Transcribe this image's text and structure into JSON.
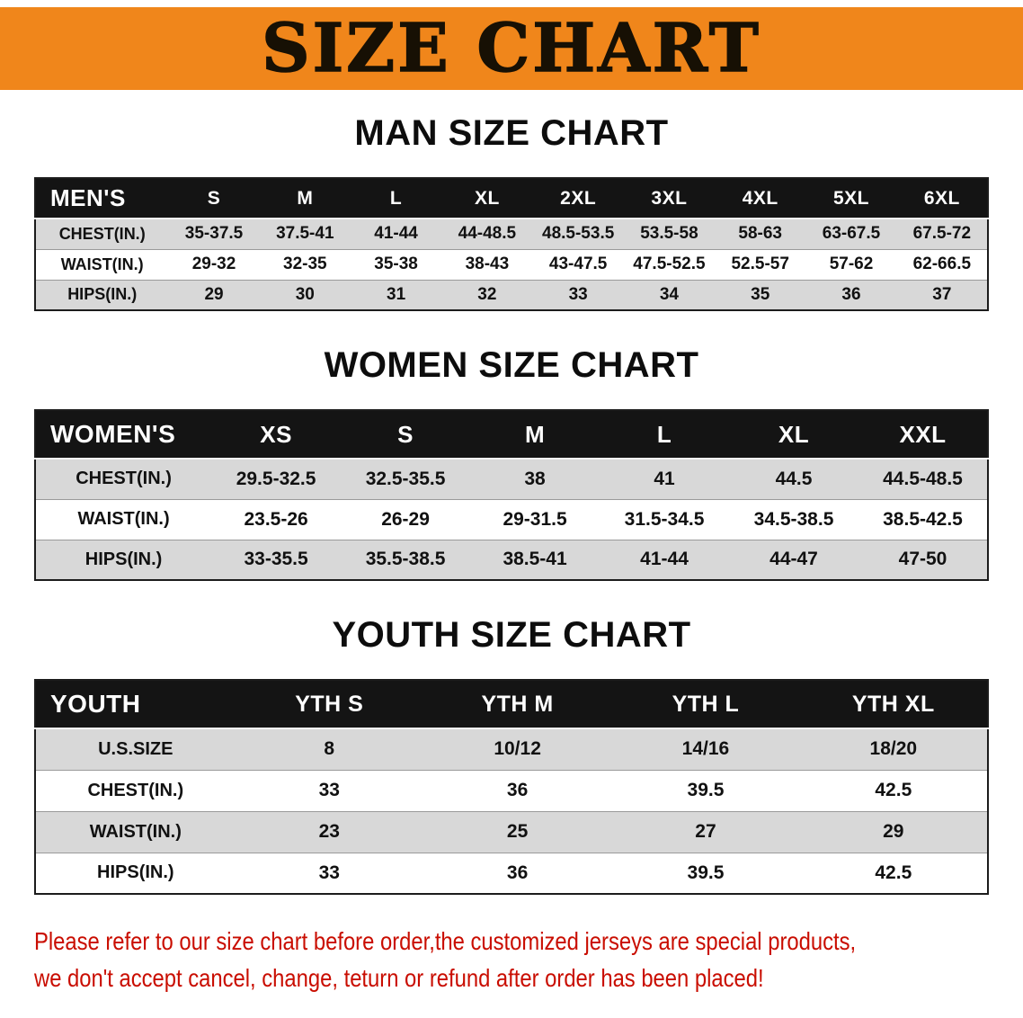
{
  "banner": {
    "title": "SIZE CHART"
  },
  "colors": {
    "banner_bg": "#F0861B",
    "header_row_bg": "#141414",
    "header_row_text": "#FFFFFF",
    "stripe_row_bg": "#D8D8D8",
    "disclaimer_text": "#C90D00"
  },
  "chart_data": [
    {
      "type": "table",
      "title": "MAN SIZE CHART",
      "header": [
        "MEN'S",
        "S",
        "M",
        "L",
        "XL",
        "2XL",
        "3XL",
        "4XL",
        "5XL",
        "6XL"
      ],
      "rows": [
        [
          "CHEST(IN.)",
          "35-37.5",
          "37.5-41",
          "41-44",
          "44-48.5",
          "48.5-53.5",
          "53.5-58",
          "58-63",
          "63-67.5",
          "67.5-72"
        ],
        [
          "WAIST(IN.)",
          "29-32",
          "32-35",
          "35-38",
          "38-43",
          "43-47.5",
          "47.5-52.5",
          "52.5-57",
          "57-62",
          "62-66.5"
        ],
        [
          "HIPS(IN.)",
          "29",
          "30",
          "31",
          "32",
          "33",
          "34",
          "35",
          "36",
          "37"
        ]
      ]
    },
    {
      "type": "table",
      "title": "WOMEN SIZE CHART",
      "header": [
        "WOMEN'S",
        "XS",
        "S",
        "M",
        "L",
        "XL",
        "XXL"
      ],
      "rows": [
        [
          "CHEST(IN.)",
          "29.5-32.5",
          "32.5-35.5",
          "38",
          "41",
          "44.5",
          "44.5-48.5"
        ],
        [
          "WAIST(IN.)",
          "23.5-26",
          "26-29",
          "29-31.5",
          "31.5-34.5",
          "34.5-38.5",
          "38.5-42.5"
        ],
        [
          "HIPS(IN.)",
          "33-35.5",
          "35.5-38.5",
          "38.5-41",
          "41-44",
          "44-47",
          "47-50"
        ]
      ]
    },
    {
      "type": "table",
      "title": "YOUTH SIZE CHART",
      "header": [
        "YOUTH",
        "YTH S",
        "YTH M",
        "YTH L",
        "YTH XL"
      ],
      "rows": [
        [
          "U.S.SIZE",
          "8",
          "10/12",
          "14/16",
          "18/20"
        ],
        [
          "CHEST(IN.)",
          "33",
          "36",
          "39.5",
          "42.5"
        ],
        [
          "WAIST(IN.)",
          "23",
          "25",
          "27",
          "29"
        ],
        [
          "HIPS(IN.)",
          "33",
          "36",
          "39.5",
          "42.5"
        ]
      ]
    }
  ],
  "disclaimer": {
    "line1": "Please refer to our size chart before order,the customized jerseys are special products,",
    "line2": "we don't accept cancel, change, teturn or refund after order has been placed!"
  }
}
